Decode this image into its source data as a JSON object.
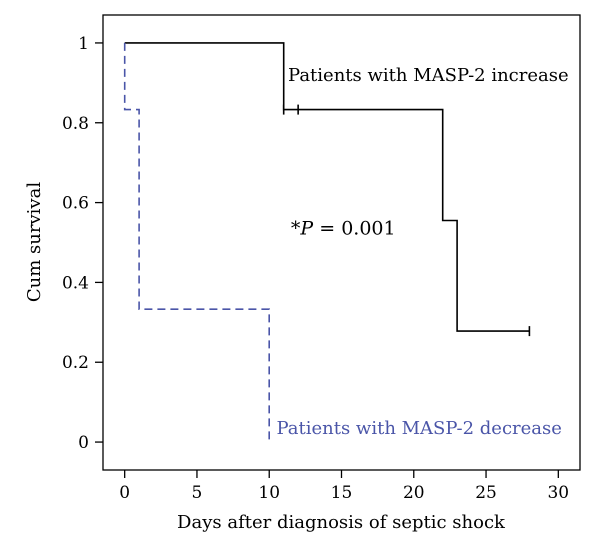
{
  "chart_data": {
    "type": "line",
    "xlabel": "Days after diagnosis of septic shock",
    "ylabel": "Cum survival",
    "xlim": [
      -1.5,
      31.5
    ],
    "ylim": [
      -0.07,
      1.07
    ],
    "xticks": [
      0,
      5,
      10,
      15,
      20,
      25,
      30
    ],
    "yticks": [
      0,
      0.2,
      0.4,
      0.6,
      0.8,
      1
    ],
    "ytick_labels": [
      "0",
      "0.2",
      "0.4",
      "0.6",
      "0.8",
      "1"
    ],
    "grid": false,
    "annotation_pvalue": {
      "star": "*",
      "symbol": "P",
      "text": " = 0.001",
      "x": 11.5,
      "y": 0.52
    },
    "series": [
      {
        "name": "Patients with MASP-2 increase",
        "color": "#000000",
        "dash": "solid",
        "steps": [
          [
            0,
            1.0
          ],
          [
            11,
            1.0
          ],
          [
            11,
            0.833
          ],
          [
            22,
            0.833
          ],
          [
            22,
            0.555
          ],
          [
            23,
            0.555
          ],
          [
            23,
            0.278
          ],
          [
            28,
            0.278
          ]
        ],
        "censored": [
          [
            11,
            0.833
          ],
          [
            12,
            0.833
          ],
          [
            28,
            0.278
          ]
        ],
        "label_x": 11.3,
        "label_y": 0.905
      },
      {
        "name": "Patients with MASP-2 decrease",
        "color": "#4a55a8",
        "dash": "dashed",
        "steps": [
          [
            0,
            1.0
          ],
          [
            0,
            0.833
          ],
          [
            1,
            0.833
          ],
          [
            1,
            0.333
          ],
          [
            10,
            0.333
          ],
          [
            10,
            0.0
          ]
        ],
        "censored": [],
        "label_x": 10.5,
        "label_y": 0.02
      }
    ]
  }
}
